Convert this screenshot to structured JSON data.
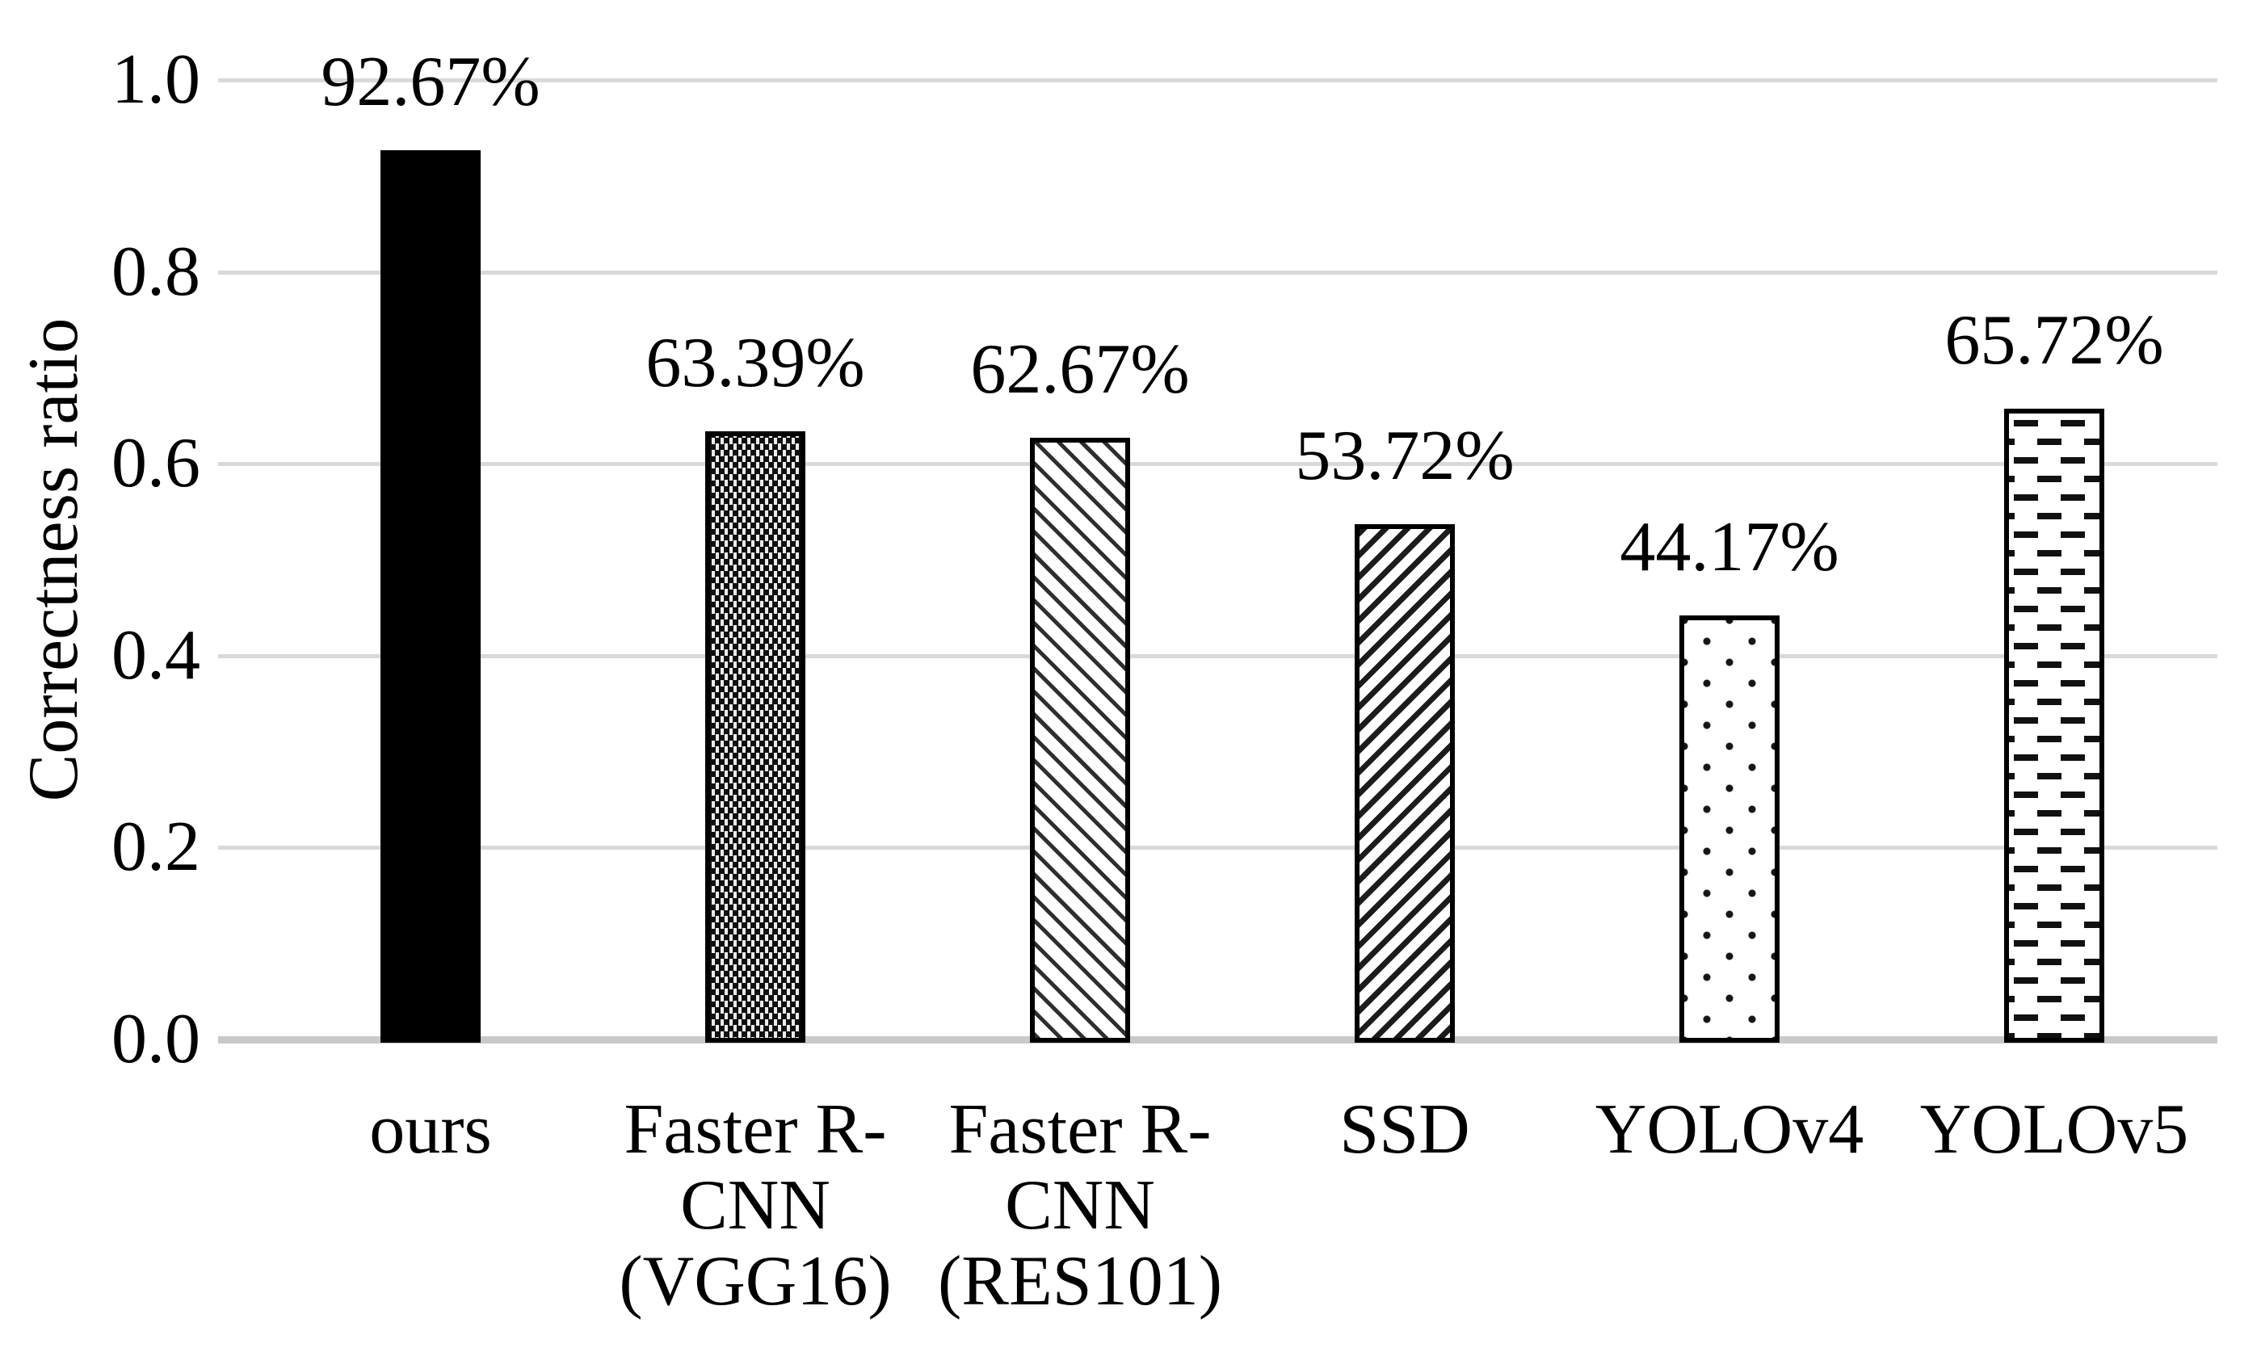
{
  "chart_data": {
    "type": "bar",
    "title": "",
    "ylabel": "Correctness ratio",
    "xlabel": "",
    "ylim": [
      0.0,
      1.0
    ],
    "ytick_step": 0.2,
    "ytick_labels": [
      "0.0",
      "0.2",
      "0.4",
      "0.6",
      "0.8",
      "1.0"
    ],
    "grid": "horizontal-on",
    "legend": "none",
    "categories": [
      "ours",
      "Faster R-CNN (VGG16)",
      "Faster R-CNN (RES101)",
      "SSD",
      "YOLOv4",
      "YOLOv5"
    ],
    "category_lines": [
      [
        "ours"
      ],
      [
        "Faster R-",
        "CNN",
        "(VGG16)"
      ],
      [
        "Faster R-",
        "CNN",
        "(RES101)"
      ],
      [
        "SSD"
      ],
      [
        "YOLOv4"
      ],
      [
        "YOLOv5"
      ]
    ],
    "values": [
      0.9267,
      0.6339,
      0.6267,
      0.5372,
      0.4417,
      0.6572
    ],
    "data_labels": [
      "92.67%",
      "63.39%",
      "62.67%",
      "53.72%",
      "44.17%",
      "65.72%"
    ],
    "patterns": [
      "solid-black",
      "dark-weave-white-dots",
      "thin-downward-diagonal-stripes",
      "upward-diagonal-stripes",
      "sparse-dots",
      "horizontal-dashes"
    ],
    "colors": {
      "bar_fill": "#000000",
      "pattern_ink": "#1a1a1a",
      "gridline": "#d9d9d9",
      "axis_line": "#c9c9c9",
      "text": "#000000",
      "background": "#ffffff"
    }
  }
}
